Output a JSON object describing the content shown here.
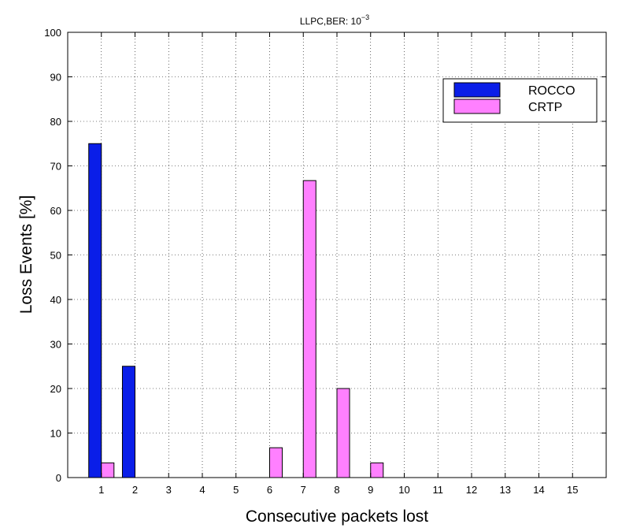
{
  "chart_data": {
    "type": "bar",
    "title": "LLPC,BER: 10",
    "title_superscript": "−3",
    "xlabel": "Consecutive packets lost",
    "ylabel": "Loss Events [%]",
    "categories": [
      "1",
      "2",
      "3",
      "4",
      "5",
      "6",
      "7",
      "8",
      "9",
      "10",
      "11",
      "12",
      "13",
      "14",
      "15"
    ],
    "series": [
      {
        "name": "ROCCO",
        "color": "#0a1ee8",
        "values": [
          75,
          25,
          0,
          0,
          0,
          0,
          0,
          0,
          0,
          0,
          0,
          0,
          0,
          0,
          0
        ]
      },
      {
        "name": "CRTP",
        "color": "#ff80ff",
        "values": [
          3.3,
          0,
          0,
          0,
          0,
          6.7,
          66.7,
          20,
          3.3,
          0,
          0,
          0,
          0,
          0,
          0
        ]
      }
    ],
    "ylim": [
      0,
      100
    ],
    "yticks": [
      0,
      10,
      20,
      30,
      40,
      50,
      60,
      70,
      80,
      90,
      100
    ],
    "xlim": [
      0,
      16
    ],
    "grid": true,
    "legend_position": "top-right"
  }
}
